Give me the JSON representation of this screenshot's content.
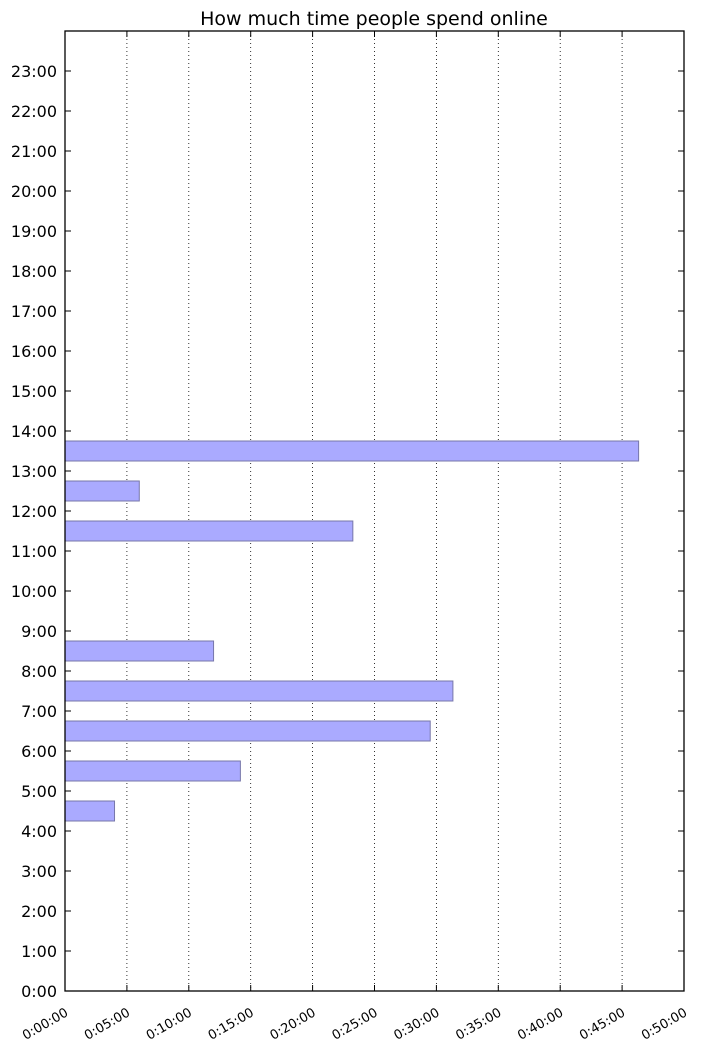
{
  "chart_data": {
    "type": "bar",
    "orientation": "horizontal",
    "title": "How much time people spend online",
    "xlabel": "",
    "ylabel": "",
    "grid": "vertical dotted",
    "bar_color": "#aaaaff",
    "bar_edge_color": "#7777aa",
    "x_axis": {
      "unit": "duration",
      "lim": [
        "0:00:00",
        "0:50:00"
      ],
      "tick_labels": [
        "0:00:00",
        "0:05:00",
        "0:10:00",
        "0:15:00",
        "0:20:00",
        "0:25:00",
        "0:30:00",
        "0:35:00",
        "0:40:00",
        "0:45:00",
        "0:50:00"
      ]
    },
    "y_axis": {
      "unit": "time of day",
      "lim": [
        "0:00",
        "24:00"
      ],
      "tick_labels": [
        "0:00",
        "1:00",
        "2:00",
        "3:00",
        "4:00",
        "5:00",
        "6:00",
        "7:00",
        "8:00",
        "9:00",
        "10:00",
        "11:00",
        "12:00",
        "13:00",
        "14:00",
        "15:00",
        "16:00",
        "17:00",
        "18:00",
        "19:00",
        "20:00",
        "21:00",
        "22:00",
        "23:00"
      ]
    },
    "bars": [
      {
        "hour": "4:30",
        "duration": "0:04:00"
      },
      {
        "hour": "5:30",
        "duration": "0:14:10"
      },
      {
        "hour": "6:30",
        "duration": "0:29:30"
      },
      {
        "hour": "7:30",
        "duration": "0:31:20"
      },
      {
        "hour": "8:30",
        "duration": "0:12:00"
      },
      {
        "hour": "11:30",
        "duration": "0:23:15"
      },
      {
        "hour": "12:30",
        "duration": "0:06:00"
      },
      {
        "hour": "13:30",
        "duration": "0:46:20"
      }
    ]
  }
}
